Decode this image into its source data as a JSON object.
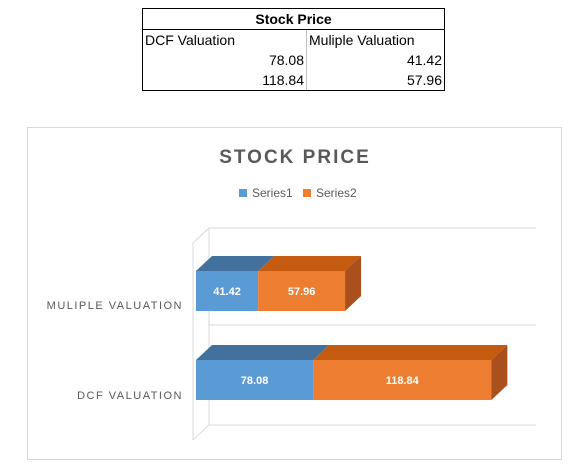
{
  "table": {
    "title": "Stock Price",
    "headers": [
      "DCF Valuation",
      "Muliple Valuation"
    ],
    "rows": [
      [
        "78.08",
        "41.42"
      ],
      [
        "118.84",
        "57.96"
      ]
    ]
  },
  "colors": {
    "series1": "#5b9bd5",
    "series1_top": "#41719c",
    "series2": "#ed7d31",
    "series2_top": "#c55a11",
    "series2_side": "#a9501c",
    "axis_line": "#d9d9d9",
    "text": "#595959"
  },
  "chart_data": {
    "type": "bar",
    "orientation": "horizontal",
    "stacked": true,
    "three_d": true,
    "title": "STOCK PRICE",
    "categories": [
      "DCF VALUATION",
      "MULIPLE VALUATION"
    ],
    "series": [
      {
        "name": "Series1",
        "values": [
          78.08,
          41.42
        ],
        "labels": [
          "78.08",
          "41.42"
        ]
      },
      {
        "name": "Series2",
        "values": [
          118.84,
          57.96
        ],
        "labels": [
          "118.84",
          "57.96"
        ]
      }
    ],
    "xlim": [
      0,
      200
    ],
    "legend": "top",
    "grid": true
  }
}
